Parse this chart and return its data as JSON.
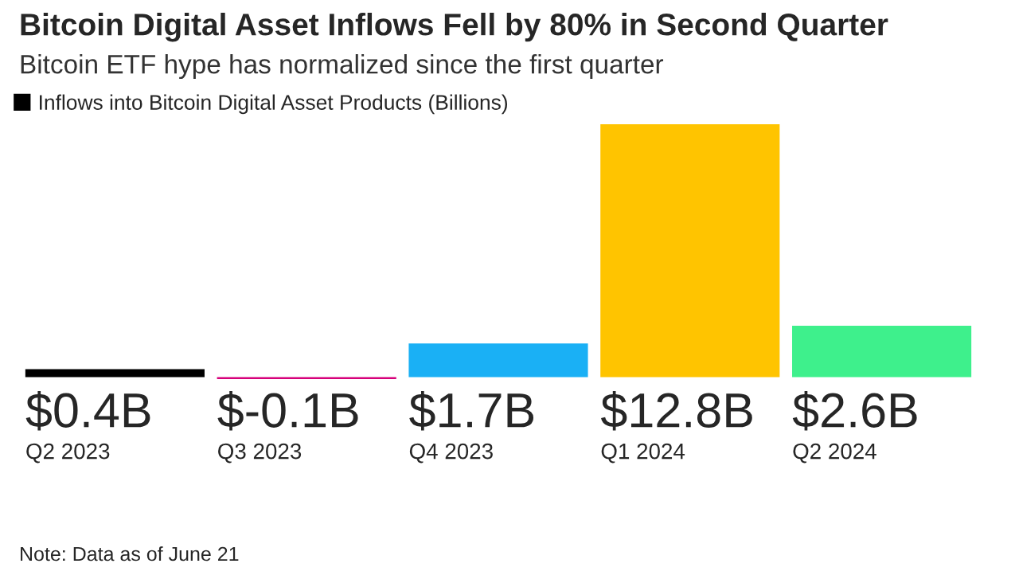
{
  "chart_data": {
    "type": "bar",
    "title": "Bitcoin Digital Asset Inflows Fell by 80% in Second Quarter",
    "subtitle": "Bitcoin ETF hype has normalized since the first quarter",
    "categories": [
      "Q2 2023",
      "Q3 2023",
      "Q4 2023",
      "Q1 2024",
      "Q2 2024"
    ],
    "series": [
      {
        "name": "Inflows into Bitcoin Digital Asset Products (Billions)",
        "color": "#000000",
        "colors": [
          "#000000",
          "#d6007a",
          "#1ab0f5",
          "#ffc400",
          "#3ef08c"
        ],
        "values": [
          0.4,
          -0.1,
          1.7,
          12.8,
          2.6
        ],
        "value_labels": [
          "$0.4B",
          "$-0.1B",
          "$1.7B",
          "$12.8B",
          "$2.6B"
        ]
      }
    ],
    "legend": "top left",
    "annotations": [
      "Note: Data as of June 21"
    ]
  }
}
